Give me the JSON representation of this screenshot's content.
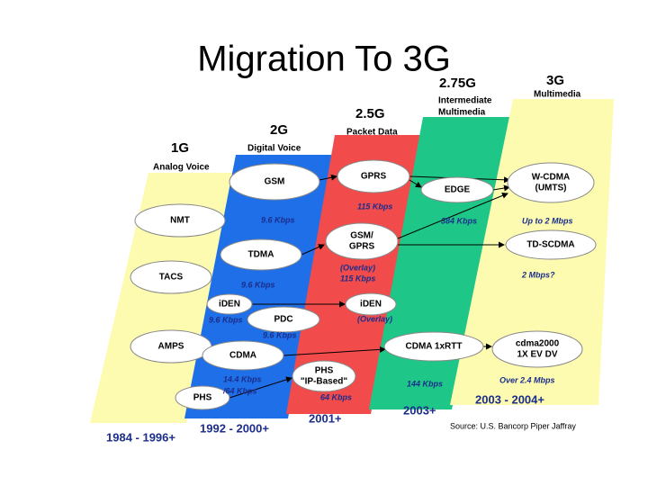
{
  "title": "Migration To 3G",
  "generations": [
    {
      "label": "1G",
      "sub": [
        "Analog Voice"
      ]
    },
    {
      "label": "2G",
      "sub": [
        "Digital Voice"
      ]
    },
    {
      "label": "2.5G",
      "sub": [
        "Packet Data"
      ]
    },
    {
      "label": "2.75G",
      "sub": [
        "Intermediate",
        "Multimedia"
      ]
    },
    {
      "label": "3G",
      "sub": [
        "Multimedia"
      ]
    }
  ],
  "nodes": [
    {
      "lines": [
        "NMT"
      ]
    },
    {
      "lines": [
        "TACS"
      ]
    },
    {
      "lines": [
        "AMPS"
      ]
    },
    {
      "lines": [
        "GSM"
      ]
    },
    {
      "lines": [
        "TDMA"
      ]
    },
    {
      "lines": [
        "iDEN"
      ]
    },
    {
      "lines": [
        "PDC"
      ]
    },
    {
      "lines": [
        "CDMA"
      ]
    },
    {
      "lines": [
        "PHS"
      ]
    },
    {
      "lines": [
        "GPRS"
      ]
    },
    {
      "lines": [
        "EDGE"
      ]
    },
    {
      "lines": [
        "GSM/",
        "GPRS"
      ]
    },
    {
      "lines": [
        "iDEN"
      ]
    },
    {
      "lines": [
        "PHS",
        "\"IP-Based\""
      ]
    },
    {
      "lines": [
        "CDMA 1xRTT"
      ]
    },
    {
      "lines": [
        "W-CDMA",
        "(UMTS)"
      ]
    },
    {
      "lines": [
        "TD-SCDMA"
      ]
    },
    {
      "lines": [
        "cdma2000",
        "1X EV DV"
      ]
    }
  ],
  "speeds": [
    "9.6 Kbps",
    "115 Kbps",
    "384 Kbps",
    "Up to 2 Mbps",
    "(Overlay)",
    "115 Kbps",
    "9.6 Kbps",
    "2 Mbps?",
    "9.6 Kbps",
    "(Overlay)",
    "9.6 Kbps",
    "14.4 Kbps",
    "/64 Kbps",
    "64 Kbps",
    "144 Kbps",
    "Over 2.4 Mbps"
  ],
  "years": [
    "1984 - 1996+",
    "1992 - 2000+",
    "2001+",
    "2003+",
    "2003 - 2004+"
  ],
  "source": "Source: U.S. Bancorp Piper Jaffray"
}
